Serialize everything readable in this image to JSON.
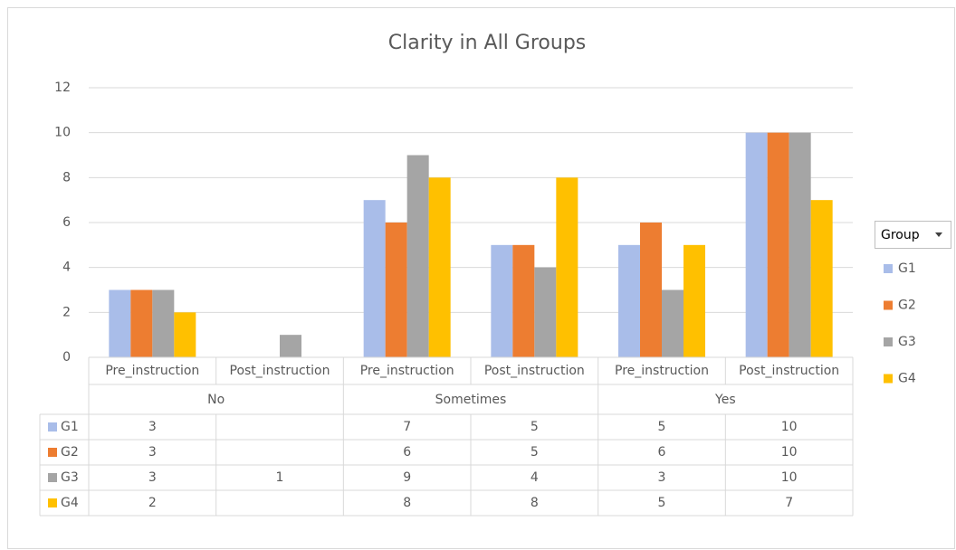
{
  "chart_data": {
    "type": "bar",
    "title": "Clarity in All Groups",
    "categories": [
      "Pre_instruction",
      "Post_instruction",
      "Pre_instruction",
      "Post_instruction",
      "Pre_instruction",
      "Post_instruction"
    ],
    "groups": [
      "No",
      "Sometimes",
      "Yes"
    ],
    "series": [
      {
        "name": "G1",
        "color": "#a9bde9",
        "values": [
          3,
          null,
          7,
          5,
          5,
          10
        ]
      },
      {
        "name": "G2",
        "color": "#ed7d31",
        "values": [
          3,
          null,
          6,
          5,
          6,
          10
        ]
      },
      {
        "name": "G3",
        "color": "#a5a5a5",
        "values": [
          3,
          1,
          9,
          4,
          3,
          10
        ]
      },
      {
        "name": "G4",
        "color": "#ffc000",
        "values": [
          2,
          null,
          8,
          8,
          5,
          7
        ]
      }
    ],
    "legend_title": "Group",
    "ylim": [
      0,
      12
    ],
    "yticks": [
      0,
      2,
      4,
      6,
      8,
      10,
      12
    ],
    "grid": true,
    "legend": "right",
    "data_table": true
  }
}
